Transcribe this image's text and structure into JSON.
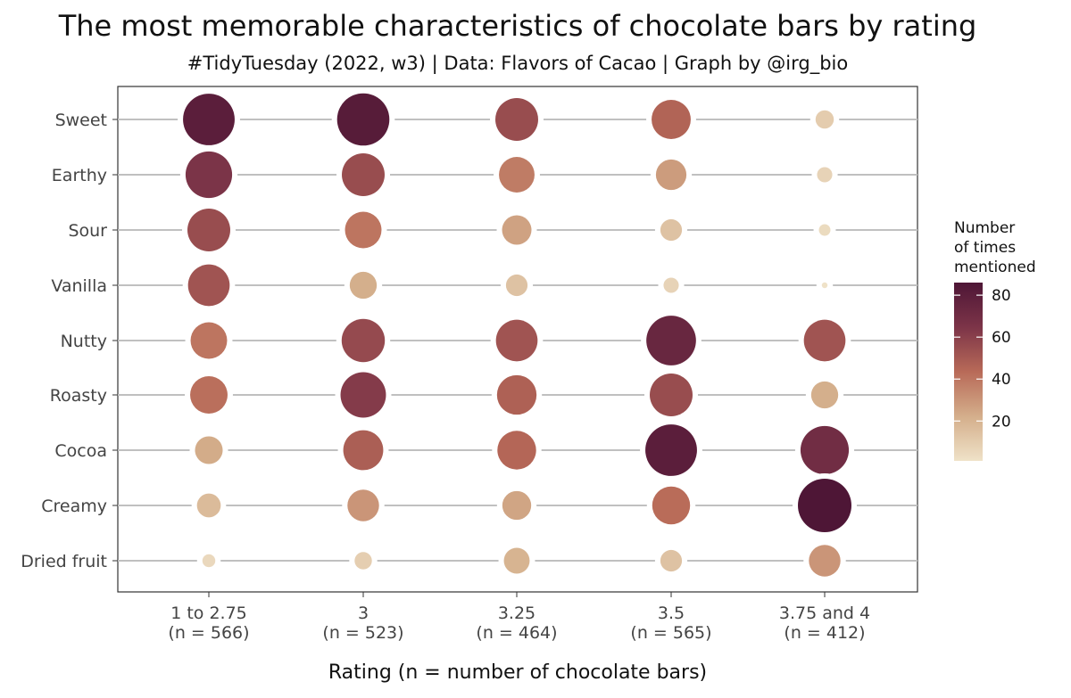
{
  "chart_data": {
    "type": "bubble",
    "title": "The most memorable characteristics of chocolate bars by rating",
    "subtitle": "#TidyTuesday (2022, w3) | Data: Flavors of Cacao | Graph by @irg_bio",
    "xlabel": "Rating (n = number of chocolate bars)",
    "ylabel": "",
    "grid": false,
    "legend_placement": "right",
    "x_categories": [
      {
        "label": "1 to 2.75",
        "n": "(n = 566)"
      },
      {
        "label": "3",
        "n": "(n = 523)"
      },
      {
        "label": "3.25",
        "n": "(n = 464)"
      },
      {
        "label": "3.5",
        "n": "(n = 565)"
      },
      {
        "label": "3.75 and 4",
        "n": "(n = 412)"
      }
    ],
    "y_categories": [
      "Sweet",
      "Earthy",
      "Sour",
      "Vanilla",
      "Nutty",
      "Roasty",
      "Cocoa",
      "Creamy",
      "Dried fruit"
    ],
    "values": [
      [
        80,
        82,
        55,
        46,
        10
      ],
      [
        65,
        55,
        38,
        28,
        7
      ],
      [
        55,
        40,
        26,
        14,
        4
      ],
      [
        52,
        22,
        14,
        7,
        1
      ],
      [
        40,
        56,
        52,
        74,
        52
      ],
      [
        42,
        62,
        47,
        55,
        22
      ],
      [
        23,
        48,
        45,
        80,
        70
      ],
      [
        17,
        30,
        25,
        43,
        86
      ],
      [
        5,
        9,
        20,
        14,
        30
      ]
    ],
    "legend": {
      "title": "Number\nof times\nmentioned",
      "ticks": [
        20,
        40,
        60,
        80
      ],
      "range": [
        1,
        86
      ],
      "color_stops": [
        "#efe2c8",
        "#d4ae8b",
        "#b86a58",
        "#7c3448",
        "#4e1636"
      ]
    }
  }
}
